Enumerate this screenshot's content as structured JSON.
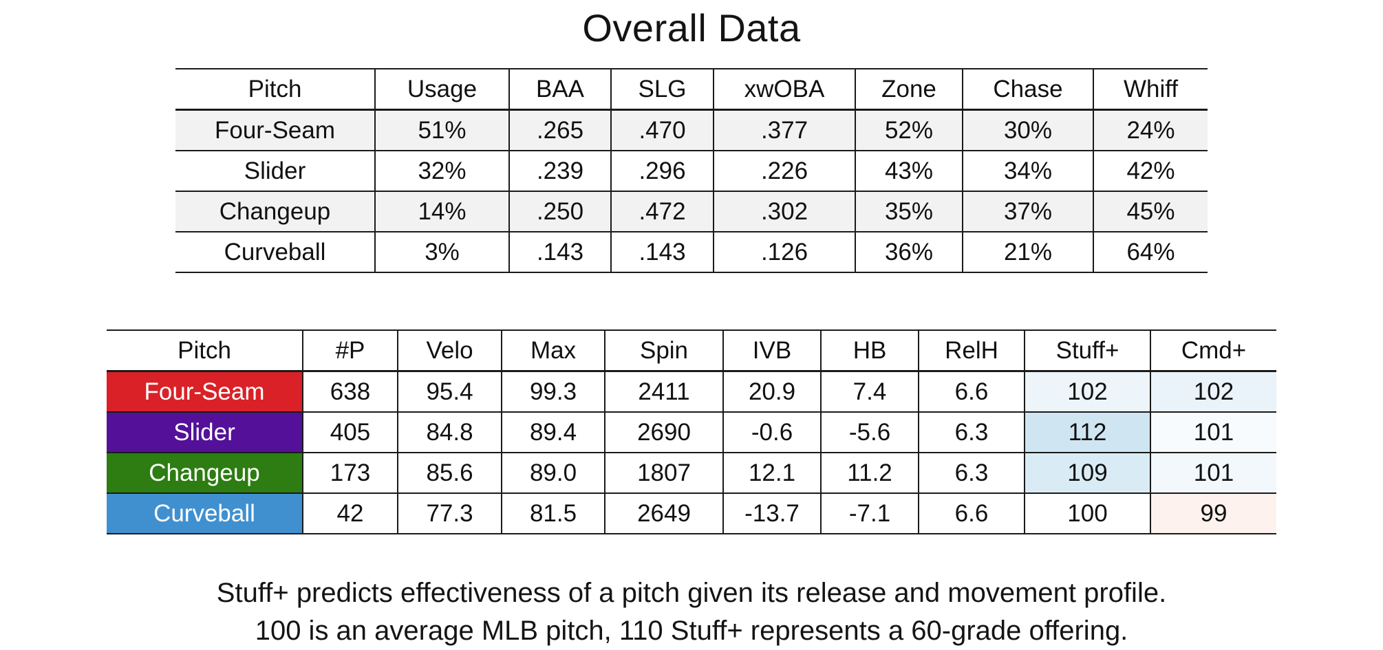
{
  "title": "Overall Data",
  "chart_data": [
    {
      "type": "table",
      "title": "Overall Data",
      "columns": [
        "Pitch",
        "Usage",
        "BAA",
        "SLG",
        "xwOBA",
        "Zone",
        "Chase",
        "Whiff"
      ],
      "rows": [
        [
          "Four-Seam",
          "51%",
          ".265",
          ".470",
          ".377",
          "52%",
          "30%",
          "24%"
        ],
        [
          "Slider",
          "32%",
          ".239",
          ".296",
          ".226",
          "43%",
          "34%",
          "42%"
        ],
        [
          "Changeup",
          "14%",
          ".250",
          ".472",
          ".302",
          "35%",
          "37%",
          "45%"
        ],
        [
          "Curveball",
          "3%",
          ".143",
          ".143",
          ".126",
          "36%",
          "21%",
          "64%"
        ]
      ]
    },
    {
      "type": "table",
      "columns": [
        "Pitch",
        "#P",
        "Velo",
        "Max",
        "Spin",
        "IVB",
        "HB",
        "RelH",
        "Stuff+",
        "Cmd+"
      ],
      "rows": [
        {
          "pitch": "Four-Seam",
          "color": "#d92127",
          "values": [
            "638",
            "95.4",
            "99.3",
            "2411",
            "20.9",
            "7.4",
            "6.6",
            "102",
            "102"
          ],
          "stuff_bg": "#edf4fa",
          "cmd_bg": "#eaf3fa"
        },
        {
          "pitch": "Slider",
          "color": "#541099",
          "values": [
            "405",
            "84.8",
            "89.4",
            "2690",
            "-0.6",
            "-5.6",
            "6.3",
            "112",
            "101"
          ],
          "stuff_bg": "#cfe6f2",
          "cmd_bg": "#f7fbfd"
        },
        {
          "pitch": "Changeup",
          "color": "#2d7d12",
          "values": [
            "173",
            "85.6",
            "89.0",
            "1807",
            "12.1",
            "11.2",
            "6.3",
            "109",
            "101"
          ],
          "stuff_bg": "#d9ecf5",
          "cmd_bg": "#f2f8fc"
        },
        {
          "pitch": "Curveball",
          "color": "#4090d0",
          "values": [
            "42",
            "77.3",
            "81.5",
            "2649",
            "-13.7",
            "-7.1",
            "6.6",
            "100",
            "99"
          ],
          "stuff_bg": "#ffffff",
          "cmd_bg": "#fdf2ed"
        }
      ]
    }
  ],
  "footnote": {
    "line1": "Stuff+ predicts effectiveness of a pitch given its release and movement profile.",
    "line2": "100 is an average MLB pitch, 110 Stuff+ represents a 60-grade offering."
  }
}
